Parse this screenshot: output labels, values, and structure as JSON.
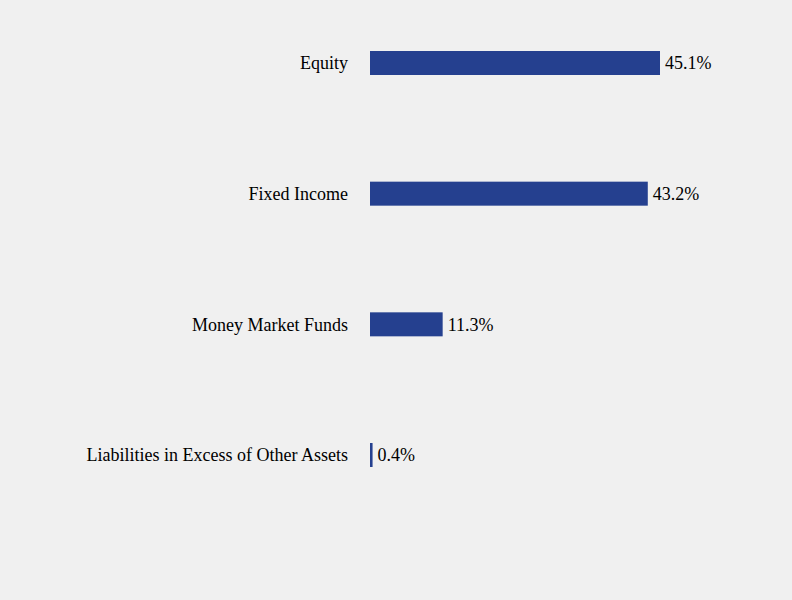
{
  "chart_data": {
    "type": "bar",
    "orientation": "horizontal",
    "categories": [
      "Equity",
      "Fixed Income",
      "Money Market Funds",
      "Liabilities in Excess of Other Assets"
    ],
    "values": [
      45.1,
      43.2,
      11.3,
      0.4
    ],
    "value_labels": [
      "45.1%",
      "43.2%",
      "11.3%",
      "0.4%"
    ],
    "color": "#25408f",
    "data_labels": true,
    "tick_labels": "y"
  }
}
